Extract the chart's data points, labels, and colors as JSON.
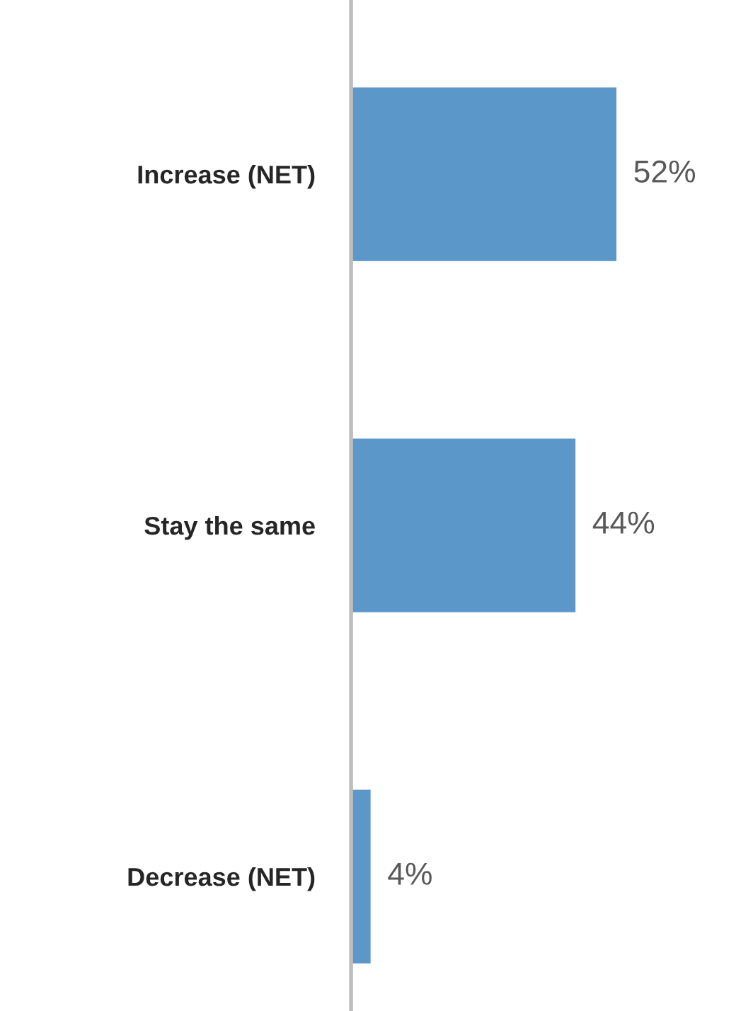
{
  "chart_data": {
    "type": "bar",
    "orientation": "horizontal",
    "categories": [
      "Increase (NET)",
      "Stay the same",
      "Decrease (NET)"
    ],
    "values": [
      52,
      44,
      4
    ],
    "value_labels": [
      "52%",
      "44%",
      "4%"
    ],
    "color": "#5b97c9",
    "tick_labels": "y",
    "grid": false,
    "legend": false
  }
}
